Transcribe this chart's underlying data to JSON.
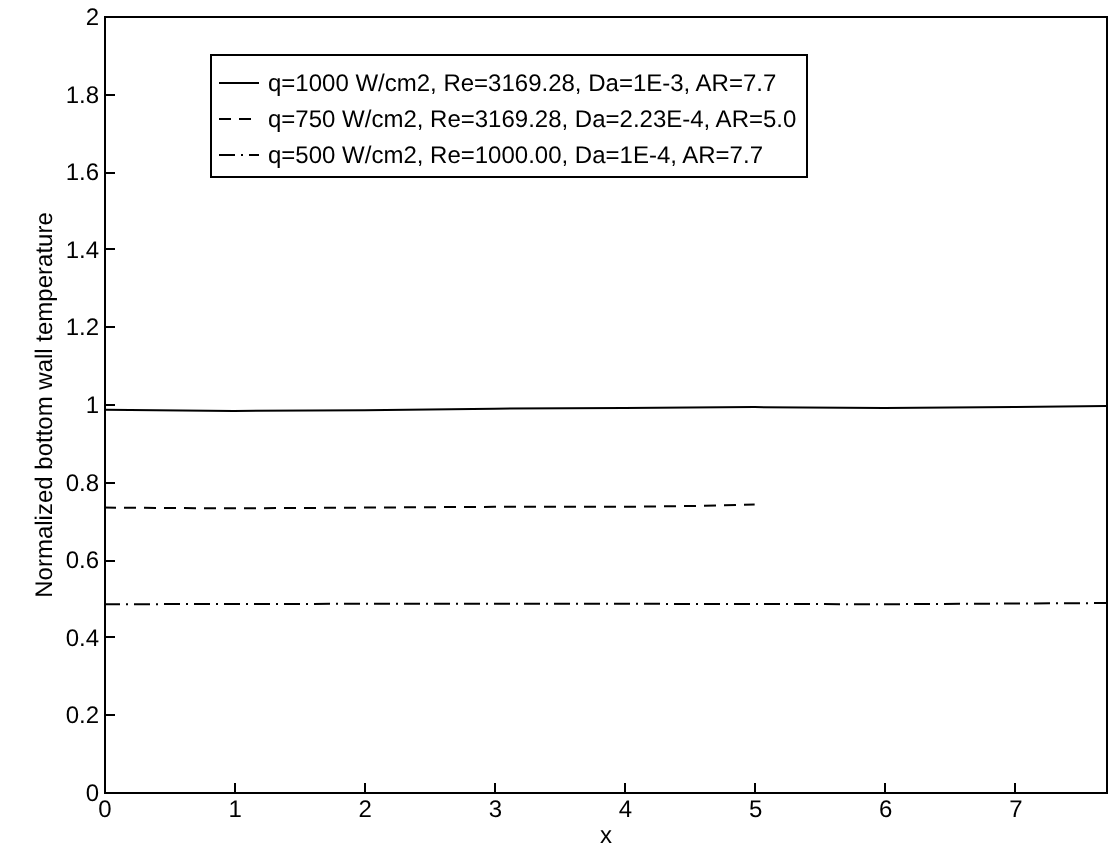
{
  "chart_data": {
    "type": "line",
    "xlabel": "x",
    "ylabel": "Normalized bottom wall temperature",
    "xlim": [
      0,
      7.7
    ],
    "xticks": [
      0,
      1,
      2,
      3,
      4,
      5,
      6,
      7
    ],
    "ylim": [
      0,
      2
    ],
    "yticks": [
      0,
      0.2,
      0.4,
      0.6,
      0.8,
      1,
      1.2,
      1.4,
      1.6,
      1.8,
      2
    ],
    "grid": false,
    "legend": "top",
    "marker": "none",
    "series": [
      {
        "name": "q=1000 W/cm2, Re=3169.28, Da=1E-3, AR=7.7",
        "color": "#000000",
        "line_style": "solid",
        "x": [
          0,
          1,
          2,
          3,
          4,
          5,
          6,
          7,
          7.7
        ],
        "values": [
          0.985,
          0.982,
          0.984,
          0.988,
          0.99,
          0.992,
          0.99,
          0.992,
          0.995
        ]
      },
      {
        "name": "q=750 W/cm2, Re=3169.28, Da=2.23E-4, AR=5.0",
        "color": "#000000",
        "line_style": "dashed",
        "x": [
          0,
          1,
          2,
          3,
          4,
          4.5,
          5
        ],
        "values": [
          0.733,
          0.731,
          0.733,
          0.735,
          0.735,
          0.737,
          0.741
        ]
      },
      {
        "name": "q=500 W/cm2, Re=1000.00, Da=1E-4, AR=7.7",
        "color": "#000000",
        "line_style": "dashdot",
        "x": [
          0,
          2,
          4,
          6,
          7.7
        ],
        "values": [
          0.484,
          0.485,
          0.485,
          0.484,
          0.487
        ]
      }
    ]
  }
}
